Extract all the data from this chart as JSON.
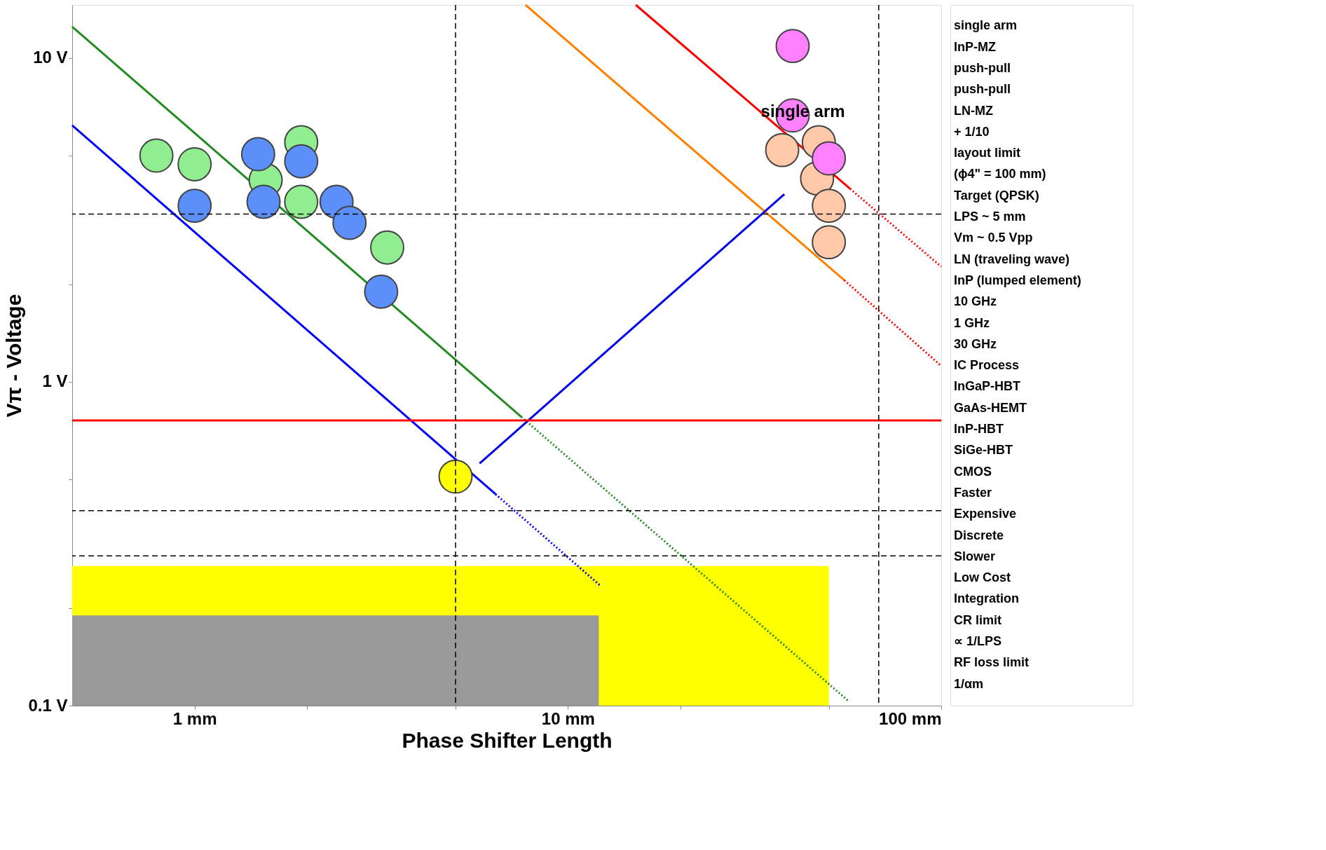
{
  "chart_data": {
    "type": "scatter",
    "xlabel": "Phase Shifter Length",
    "ylabel": "Vπ - Voltage",
    "log": "xy",
    "grid": false,
    "xlim": [
      0.47,
      100
    ],
    "ylim": [
      0.1,
      14.6
    ],
    "xticks": [
      {
        "value": 1,
        "label": "1 mm"
      },
      {
        "value": 2,
        "label": null
      },
      {
        "value": 5,
        "label": null
      },
      {
        "value": 10,
        "label": "10 mm"
      },
      {
        "value": 20,
        "label": null
      },
      {
        "value": 50,
        "label": null
      },
      {
        "value": 100,
        "label": "100 mm"
      }
    ],
    "yticks": [
      {
        "value": 0.1,
        "label": "0.1 V"
      },
      {
        "value": 0.2,
        "label": null
      },
      {
        "value": 0.5,
        "label": null
      },
      {
        "value": 1,
        "label": "1 V"
      },
      {
        "value": 2,
        "label": null
      },
      {
        "value": 5,
        "label": null
      },
      {
        "value": 10,
        "label": "10 V"
      }
    ],
    "series": [
      {
        "type": "area",
        "color": "#ffff00",
        "x": [
          0.47,
          50
        ],
        "values": [
          0.27,
          0.27
        ]
      },
      {
        "type": "area",
        "color": "#999999",
        "x": [
          0.47,
          12.1
        ],
        "values": [
          0.19,
          0.19
        ]
      },
      {
        "type": "line",
        "color": "#228b22",
        "line_style": "solid",
        "x": [
          0.47,
          7.5
        ],
        "values": [
          12.5,
          0.78
        ]
      },
      {
        "type": "line",
        "color": "#228b22",
        "line_style": "dotted",
        "x": [
          7.5,
          56.6
        ],
        "values": [
          0.78,
          0.103
        ]
      },
      {
        "type": "line",
        "color": "#0000ff",
        "line_style": "solid",
        "x": [
          0.47,
          6.4
        ],
        "values": [
          6.2,
          0.45
        ]
      },
      {
        "type": "line",
        "color": "#0000ff",
        "line_style": "dotted",
        "x": [
          6.4,
          12.2
        ],
        "values": [
          0.45,
          0.235
        ]
      },
      {
        "type": "line",
        "color": "#ff7f00",
        "line_style": "solid",
        "x": [
          7.7,
          55
        ],
        "values": [
          14.6,
          2.06
        ]
      },
      {
        "type": "line",
        "color": "#ff0000",
        "line_style": "dotted",
        "x": [
          55,
          100
        ],
        "values": [
          2.06,
          1.12
        ]
      },
      {
        "type": "line",
        "color": "#ff0000",
        "line_style": "solid",
        "x": [
          15.2,
          57
        ],
        "values": [
          14.6,
          3.95
        ]
      },
      {
        "type": "line",
        "color": "#ff0000",
        "line_style": "dotted",
        "x": [
          57,
          100
        ],
        "values": [
          3.95,
          2.27
        ]
      },
      {
        "type": "line",
        "color": "#0000ee",
        "line_style": "solid",
        "x": [
          38,
          5.8
        ],
        "values": [
          3.8,
          0.56
        ]
      },
      {
        "marker": "circle",
        "color": "#90ee90",
        "x": [
          0.79,
          1.0,
          1.5,
          1.93,
          1.55,
          1.93,
          3.28
        ],
        "values": [
          5.0,
          4.7,
          null,
          5.5,
          4.2,
          3.6,
          2.6
        ]
      },
      {
        "marker": "circle",
        "color": "#5b8ff9",
        "x": [
          1.48,
          1.93,
          1.0,
          1.53,
          2.4,
          2.6,
          3.16
        ],
        "values": [
          5.05,
          4.8,
          3.5,
          3.6,
          3.6,
          3.1,
          1.9
        ]
      },
      {
        "marker": "circle",
        "color": "#ffc8a8",
        "x": [
          37.5,
          47,
          46.5,
          50,
          50
        ],
        "values": [
          5.2,
          5.5,
          4.25,
          3.5,
          2.7
        ]
      },
      {
        "marker": "circle",
        "color": "#ff80ff",
        "x": [
          40,
          40,
          50
        ],
        "values": [
          10.9,
          6.65,
          4.9
        ]
      },
      {
        "marker": "circle",
        "color": "#ffff00",
        "x": [
          5.0
        ],
        "values": [
          0.51
        ]
      }
    ],
    "ref_lines": [
      {
        "axis": "y",
        "value": 0.76,
        "color": "#ff0000",
        "line_style": "solid"
      },
      {
        "axis": "y",
        "value": 3.3,
        "color": "#000000",
        "line_style": "dashed"
      },
      {
        "axis": "y",
        "value": 0.4,
        "color": "#000000",
        "line_style": "dashed"
      },
      {
        "axis": "y",
        "value": 0.29,
        "color": "#000000",
        "line_style": "dashed"
      },
      {
        "axis": "x",
        "value": 68,
        "color": "#000000",
        "line_style": "dashed"
      },
      {
        "axis": "x",
        "value": 5.0,
        "color": "#000000",
        "line_style": "dashed"
      }
    ],
    "annotations": [
      {
        "text": "single arm",
        "x": 48.5,
        "y": 6.1
      },
      "single arm",
      "InP-MZ",
      "push-pull",
      "push-pull",
      "LN-MZ",
      "+ 1/10",
      "layout limit",
      "(ϕ4\" = 100 mm)",
      "Target (QPSK)",
      "LPS ~ 5 mm",
      "Vm ~ 0.5 Vpp",
      "LN (traveling wave)",
      "InP (lumped element)",
      "10 GHz",
      "1 GHz",
      "30 GHz",
      "IC Process",
      "InGaP-HBT",
      "GaAs-HEMT",
      "InP-HBT",
      "SiGe-HBT",
      "CMOS",
      "Faster",
      "Expensive",
      "Discrete",
      "Slower",
      "Low Cost",
      "Integration",
      "CR limit",
      "∝ 1/LPS",
      "RF loss limit",
      "1/αm"
    ]
  }
}
